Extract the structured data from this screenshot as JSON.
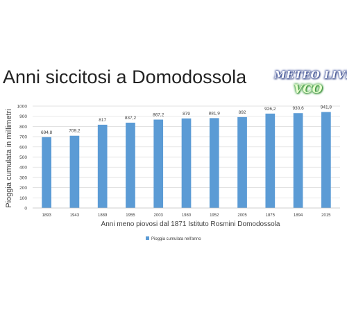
{
  "logo": {
    "line1": "METEO LIVE",
    "line2": "VCO"
  },
  "colors": {
    "bar": "#5b9bd5",
    "grid": "#d9d9d9",
    "text": "#404040"
  },
  "chart_data": {
    "type": "bar",
    "title": "Anni siccitosi a Domodossola",
    "xlabel": "Anni meno piovosi dal 1871 Istituto Rosmini Domodossola",
    "ylabel": "Pioggia cumulata in millimetri",
    "categories": [
      "1893",
      "1943",
      "1889",
      "1955",
      "2003",
      "1980",
      "1952",
      "2005",
      "1875",
      "1894",
      "2015"
    ],
    "series": [
      {
        "name": "Pioggia cumulata nell'anno",
        "values": [
          694.8,
          709.2,
          817,
          837.2,
          867.2,
          879,
          881.9,
          892,
          926.2,
          930.6,
          941.8
        ],
        "labels": [
          "694,8",
          "709,2",
          "817",
          "837,2",
          "867,2",
          "879",
          "881,9",
          "892",
          "926,2",
          "930,6",
          "941,8"
        ]
      }
    ],
    "ylim": [
      0,
      1000
    ],
    "yticks": [
      0,
      100,
      200,
      300,
      400,
      500,
      600,
      700,
      800,
      900,
      1000
    ],
    "grid": true,
    "legend": "bottom"
  }
}
